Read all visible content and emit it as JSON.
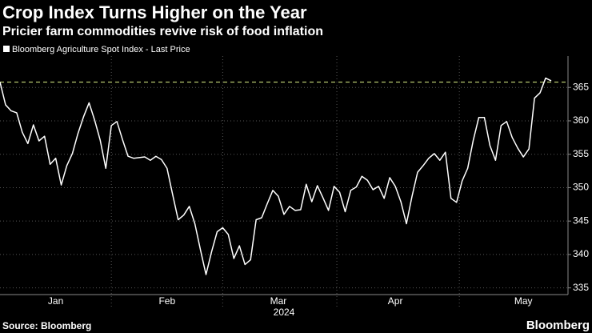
{
  "chart_data": {
    "type": "line",
    "title": "Crop Index Turns Higher on the Year",
    "subtitle": "Pricier farm commodities revive risk of food inflation",
    "source": "Source: Bloomberg",
    "brand": "Bloomberg",
    "year_label": "2024",
    "categories": [
      null,
      null,
      null,
      null,
      null,
      null,
      null,
      null,
      null,
      null,
      "Jan",
      null,
      null,
      null,
      null,
      null,
      null,
      null,
      null,
      null,
      null,
      null,
      null,
      null,
      null,
      null,
      null,
      null,
      null,
      null,
      "Feb",
      null,
      null,
      null,
      null,
      null,
      null,
      null,
      null,
      null,
      null,
      null,
      null,
      null,
      null,
      null,
      null,
      null,
      null,
      null,
      "Mar",
      null,
      null,
      null,
      null,
      null,
      null,
      null,
      null,
      null,
      null,
      null,
      null,
      null,
      null,
      null,
      null,
      null,
      null,
      null,
      null,
      "Apr",
      null,
      null,
      null,
      null,
      null,
      null,
      null,
      null,
      null,
      null,
      null,
      null,
      null,
      null,
      null,
      null,
      null,
      null,
      null,
      null,
      null,
      null,
      "May",
      null,
      null,
      null,
      null,
      null
    ],
    "series": [
      {
        "name": "Bloomberg Agriculture Spot Index - Last Price",
        "color": "#ffffff",
        "values": [
          365.8,
          362.4,
          361.5,
          361.2,
          358.3,
          356.6,
          359.4,
          357.0,
          357.7,
          353.5,
          354.4,
          350.4,
          353.3,
          355.1,
          358.1,
          360.6,
          362.7,
          360.1,
          357.1,
          352.9,
          359.3,
          359.9,
          357.2,
          354.7,
          354.4,
          354.5,
          354.6,
          354.1,
          354.7,
          354.2,
          352.9,
          349.0,
          345.2,
          345.9,
          347.2,
          344.6,
          340.7,
          337.0,
          340.4,
          343.4,
          344.0,
          343.0,
          339.4,
          341.3,
          338.5,
          339.2,
          345.2,
          345.5,
          347.6,
          349.6,
          348.7,
          346.0,
          347.2,
          346.6,
          346.7,
          350.5,
          347.9,
          350.3,
          348.5,
          346.6,
          350.2,
          349.3,
          346.4,
          349.6,
          350.1,
          351.7,
          351.1,
          349.7,
          350.2,
          348.4,
          351.5,
          350.2,
          347.9,
          344.6,
          348.7,
          352.3,
          353.3,
          354.4,
          355.1,
          354.1,
          355.3,
          348.4,
          347.8,
          351.0,
          352.9,
          357.1,
          360.5,
          360.5,
          356.3,
          354.1,
          359.3,
          359.9,
          357.5,
          355.9,
          354.6,
          355.8,
          363.4,
          364.2,
          366.4,
          366.0
        ]
      }
    ],
    "reference_line": {
      "value": 365.8,
      "color": "#c8d97a"
    },
    "ylim": [
      334,
      369.7
    ],
    "yticks": [
      335,
      340,
      345,
      350,
      355,
      360,
      365
    ],
    "grid": true
  }
}
